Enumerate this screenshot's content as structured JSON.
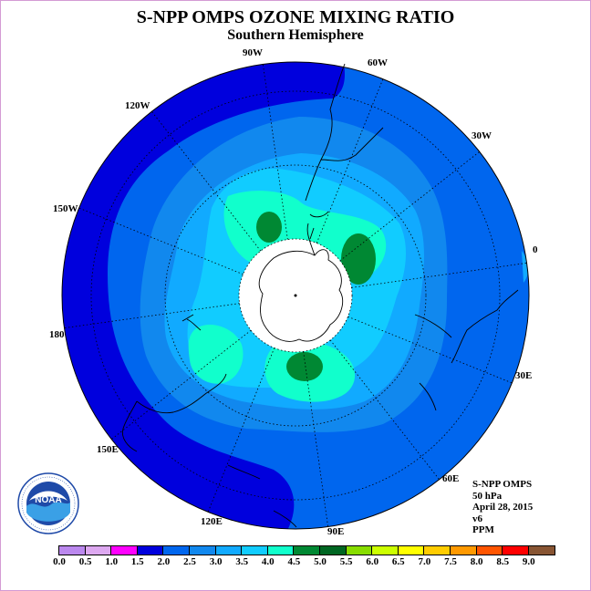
{
  "header": {
    "title": "S-NPP OMPS OZONE MIXING RATIO",
    "subtitle": "Southern Hemisphere"
  },
  "longitude_labels": [
    "90W",
    "60W",
    "120W",
    "30W",
    "150W",
    "0",
    "180",
    "30E",
    "150E",
    "60E",
    "120E",
    "90E"
  ],
  "info_block": {
    "instrument": "S-NPP OMPS",
    "level": "50 hPa",
    "date": "April 28, 2015",
    "version": "v6",
    "units": "PPM"
  },
  "logo": {
    "text": "NOAA",
    "ring_text": "NATIONAL OCEANIC AND ATMOSPHERIC ADMINISTRATION · U.S. DEPARTMENT OF COMMERCE",
    "icon": "noaa-logo-icon"
  },
  "colorbar": {
    "tick_labels": [
      "0.0",
      "0.5",
      "1.0",
      "1.5",
      "2.0",
      "2.5",
      "3.0",
      "3.5",
      "4.0",
      "4.5",
      "5.0",
      "5.5",
      "6.0",
      "6.5",
      "7.0",
      "7.5",
      "8.0",
      "8.5",
      "9.0"
    ],
    "colors": [
      "#bb88ee",
      "#dda8f0",
      "#ff00ff",
      "#0000dd",
      "#0066ee",
      "#1188ee",
      "#11aaff",
      "#11ccff",
      "#11ffcc",
      "#008833",
      "#006622",
      "#88dd00",
      "#ccff00",
      "#ffff00",
      "#ffcc00",
      "#ff9900",
      "#ff5500",
      "#ff0000",
      "#885533"
    ]
  },
  "map_colors": {
    "pole_hole": "#ffffff",
    "band_15_20": "#0000dd",
    "band_20_25": "#0066ee",
    "band_25_30": "#1188ee",
    "band_30_35": "#11aaff",
    "band_35_40": "#11ccff",
    "band_40_45": "#11ffcc",
    "band_45_50": "#008833"
  }
}
